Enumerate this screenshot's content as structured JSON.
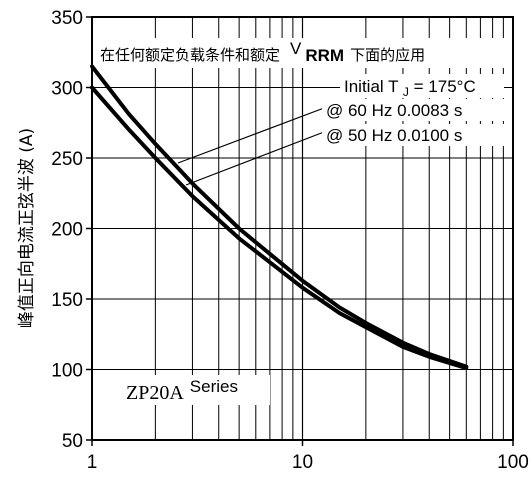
{
  "chart_data": {
    "type": "line",
    "title": "在任何额定负载条件和额定 V RRM 下面的应用",
    "ylabel": "峰值正向电流正弦半波 (A)",
    "xlabel": "",
    "xscale": "log",
    "xlim": [
      1,
      100
    ],
    "ylim": [
      50,
      350
    ],
    "x_ticks": [
      "1",
      "10",
      "100"
    ],
    "y_ticks": [
      "50",
      "100",
      "150",
      "200",
      "250",
      "300",
      "350"
    ],
    "grid": true,
    "annotations": {
      "header_pre": "在任何额定负载条件和额定",
      "vrrm_v": "V",
      "vrrm_sub": "RRM",
      "header_post": "下面的应用",
      "tj_pre": "Initial T",
      "tj_sub": "J",
      "tj_post": " = 175°C",
      "line60": "@ 60 Hz 0.0083 s",
      "line50": "@ 50 Hz 0.0100 s",
      "series_main": "ZP20A",
      "series_suffix": "Series"
    },
    "series": [
      {
        "name": "@ 60 Hz 0.0083 s",
        "color": "#000000",
        "x": [
          1,
          1.5,
          2,
          3,
          5,
          7,
          10,
          15,
          20,
          30,
          40,
          60
        ],
        "y": [
          315,
          281,
          260,
          232,
          200,
          182,
          163,
          144,
          133,
          119,
          111,
          102
        ]
      },
      {
        "name": "@ 50 Hz 0.0100 s",
        "color": "#000000",
        "x": [
          1,
          1.5,
          2,
          3,
          5,
          7,
          10,
          15,
          20,
          30,
          40,
          60
        ],
        "y": [
          300,
          270,
          250,
          223,
          193,
          176,
          158,
          140,
          130,
          116,
          109,
          101
        ]
      }
    ]
  }
}
